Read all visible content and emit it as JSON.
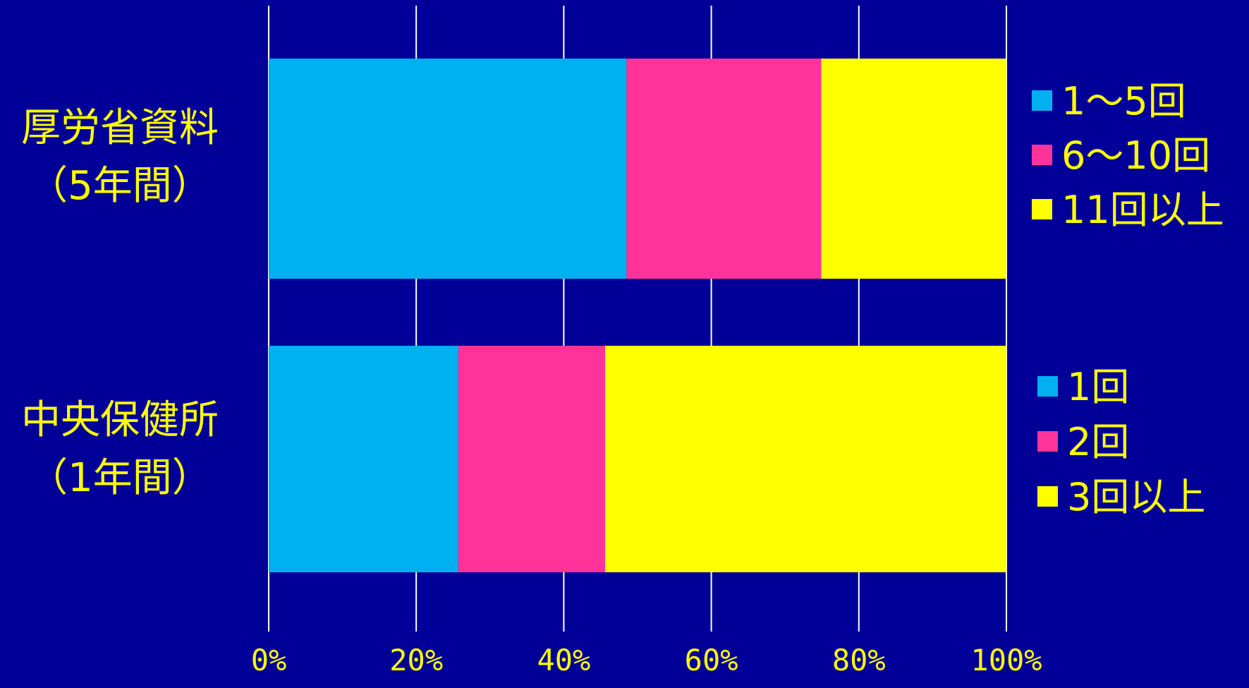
{
  "chart_data": {
    "type": "bar",
    "orientation": "horizontal",
    "stacked": true,
    "percent_stacked": true,
    "categories": [
      {
        "label_lines": [
          "厚労省資料",
          "（5年間）"
        ]
      },
      {
        "label_lines": [
          "中央保健所",
          "（1年間）"
        ]
      }
    ],
    "bars": [
      {
        "segments": [
          {
            "name": "1～5回",
            "value": 48.5,
            "color": "#00B0F0"
          },
          {
            "name": "6～10回",
            "value": 26.4,
            "color": "#FF3399"
          },
          {
            "name": "11回以上",
            "value": 25.1,
            "color": "#FFFF00"
          }
        ]
      },
      {
        "segments": [
          {
            "name": "1回",
            "value": 25.7,
            "color": "#00B0F0"
          },
          {
            "name": "2回",
            "value": 19.9,
            "color": "#FF3399"
          },
          {
            "name": "3回以上",
            "value": 54.4,
            "color": "#FFFF00"
          }
        ]
      }
    ],
    "xlim": [
      0,
      100
    ],
    "x_ticks": [
      0,
      20,
      40,
      60,
      80,
      100
    ],
    "x_tick_labels": [
      "0%",
      "20%",
      "40%",
      "60%",
      "80%",
      "100%"
    ],
    "grid": true,
    "legend_position": "right of each bar"
  },
  "colors": {
    "background": "#000099",
    "text": "#FFFF00",
    "grid": "#FFFFFF"
  }
}
